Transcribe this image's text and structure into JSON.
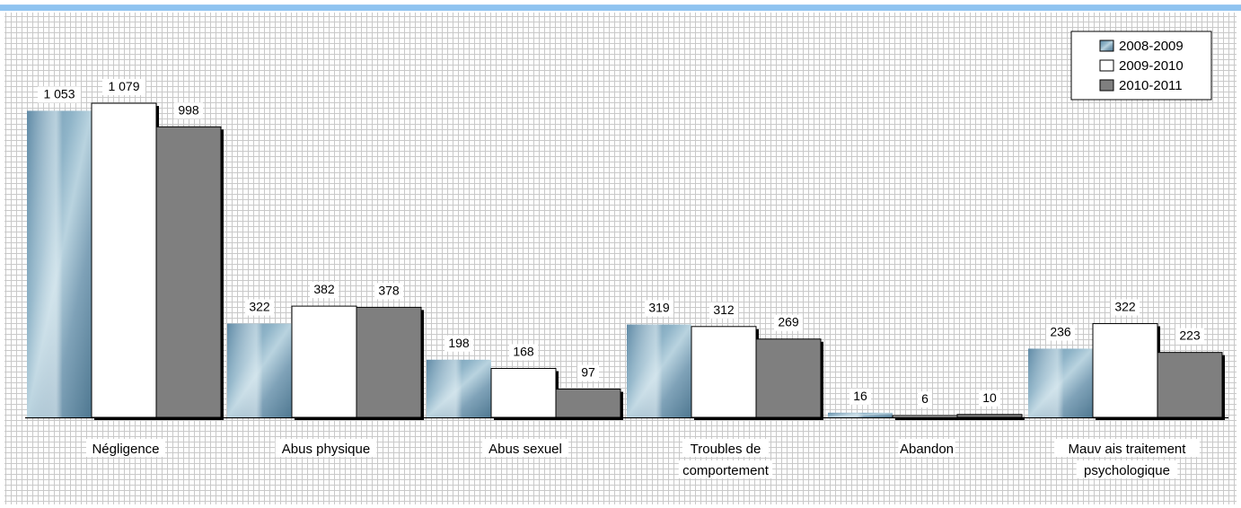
{
  "colors": {
    "background_grid": "#c8c8c8",
    "series_2008": "#6f93ab",
    "series_2009": "#ffffff",
    "series_2010": "#7f7f7f",
    "top_rule": "#8fc3f0",
    "border": "#000000"
  },
  "chart_data": {
    "type": "bar",
    "title": "",
    "xlabel": "",
    "ylabel": "",
    "ylim": [
      0,
      1100
    ],
    "grid": true,
    "legend_position": "top-right",
    "categories": [
      [
        "Négligence"
      ],
      [
        "Abus physique"
      ],
      [
        "Abus sexuel"
      ],
      [
        "Troubles de",
        "comportement"
      ],
      [
        "Abandon"
      ],
      [
        "Mauv ais traitement",
        "psychologique"
      ]
    ],
    "series": [
      {
        "name": "2008-2009",
        "values": [
          1053,
          322,
          198,
          319,
          16,
          236
        ],
        "labels": [
          "1 053",
          "322",
          "198",
          "319",
          "16",
          "236"
        ]
      },
      {
        "name": "2009-2010",
        "values": [
          1079,
          382,
          168,
          312,
          6,
          322
        ],
        "labels": [
          "1 079",
          "382",
          "168",
          "312",
          "6",
          "322"
        ]
      },
      {
        "name": "2010-2011",
        "values": [
          998,
          378,
          97,
          269,
          10,
          223
        ],
        "labels": [
          "998",
          "378",
          "97",
          "269",
          "10",
          "223"
        ]
      }
    ]
  }
}
